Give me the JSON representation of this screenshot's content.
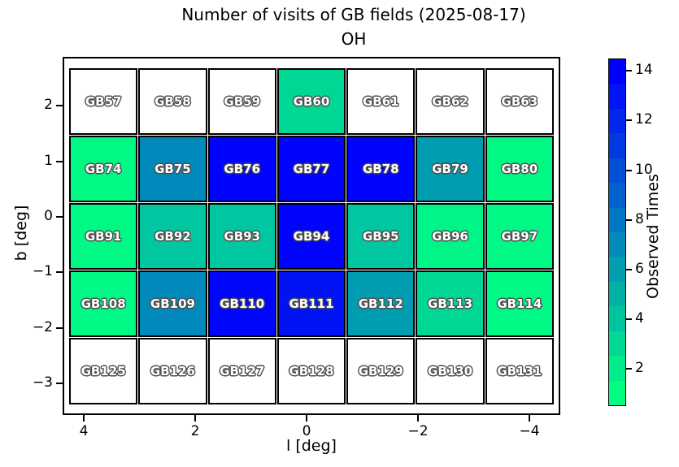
{
  "title": {
    "line1": "Number of visits of GB fields (2025-08-17)",
    "line2": "OH"
  },
  "axes": {
    "xlabel": "l [deg]",
    "ylabel": "b [deg]",
    "xticks": [
      {
        "label": "4",
        "value": 4
      },
      {
        "label": "2",
        "value": 2
      },
      {
        "label": "0",
        "value": 0
      },
      {
        "label": "−2",
        "value": -2
      },
      {
        "label": "−4",
        "value": -4
      }
    ],
    "yticks": [
      {
        "label": "2",
        "value": 2
      },
      {
        "label": "1",
        "value": 1
      },
      {
        "label": "0",
        "value": 0
      },
      {
        "label": "−1",
        "value": -1
      },
      {
        "label": "−2",
        "value": -2
      },
      {
        "label": "−3",
        "value": -3
      }
    ]
  },
  "colorbar": {
    "label": "Observed Times",
    "ticks": [
      {
        "label": "2",
        "value": 2
      },
      {
        "label": "4",
        "value": 4
      },
      {
        "label": "6",
        "value": 6
      },
      {
        "label": "8",
        "value": 8
      },
      {
        "label": "10",
        "value": 10
      },
      {
        "label": "12",
        "value": 12
      },
      {
        "label": "14",
        "value": 14
      }
    ],
    "range": [
      1,
      14
    ],
    "segments_bottom_to_top": [
      "#00FF80",
      "#00EB89",
      "#00D893",
      "#00C49D",
      "#00B1A6",
      "#009DB0",
      "#008ABA",
      "#0076C4",
      "#0062CD",
      "#004FD7",
      "#003BE1",
      "#0027EB",
      "#0014F5",
      "#0000FF"
    ]
  },
  "grid": {
    "cells": [
      {
        "label": "GB57",
        "value": 0,
        "color": "#ffffff"
      },
      {
        "label": "GB58",
        "value": 0,
        "color": "#ffffff"
      },
      {
        "label": "GB59",
        "value": 0,
        "color": "#ffffff"
      },
      {
        "label": "GB60",
        "value": 3,
        "color": "#00D794"
      },
      {
        "label": "GB61",
        "value": 0,
        "color": "#ffffff"
      },
      {
        "label": "GB62",
        "value": 0,
        "color": "#ffffff"
      },
      {
        "label": "GB63",
        "value": 0,
        "color": "#ffffff"
      },
      {
        "label": "GB74",
        "value": 1,
        "color": "#00F985"
      },
      {
        "label": "GB75",
        "value": 7,
        "color": "#0089BA"
      },
      {
        "label": "GB76",
        "value": 14,
        "color": "#0003FD"
      },
      {
        "label": "GB77",
        "value": 14,
        "color": "#0003FD"
      },
      {
        "label": "GB78",
        "value": 14,
        "color": "#0003FD"
      },
      {
        "label": "GB79",
        "value": 6,
        "color": "#009DB0"
      },
      {
        "label": "GB80",
        "value": 1,
        "color": "#00F985"
      },
      {
        "label": "GB91",
        "value": 1,
        "color": "#00F985"
      },
      {
        "label": "GB92",
        "value": 4,
        "color": "#00C7A0"
      },
      {
        "label": "GB93",
        "value": 4,
        "color": "#00C7A0"
      },
      {
        "label": "GB94",
        "value": 14,
        "color": "#0003FD"
      },
      {
        "label": "GB95",
        "value": 4,
        "color": "#00C7A0"
      },
      {
        "label": "GB96",
        "value": 1,
        "color": "#00F487"
      },
      {
        "label": "GB97",
        "value": 1,
        "color": "#00F985"
      },
      {
        "label": "GB108",
        "value": 1,
        "color": "#00F985"
      },
      {
        "label": "GB109",
        "value": 7,
        "color": "#0089BA"
      },
      {
        "label": "GB110",
        "value": 14,
        "color": "#0006FC"
      },
      {
        "label": "GB111",
        "value": 13,
        "color": "#0013F4"
      },
      {
        "label": "GB112",
        "value": 6,
        "color": "#009DB0"
      },
      {
        "label": "GB113",
        "value": 3,
        "color": "#00D794"
      },
      {
        "label": "GB114",
        "value": 1,
        "color": "#00F985"
      },
      {
        "label": "GB125",
        "value": 0,
        "color": "#ffffff"
      },
      {
        "label": "GB126",
        "value": 0,
        "color": "#ffffff"
      },
      {
        "label": "GB127",
        "value": 0,
        "color": "#ffffff"
      },
      {
        "label": "GB128",
        "value": 0,
        "color": "#ffffff"
      },
      {
        "label": "GB129",
        "value": 0,
        "color": "#ffffff"
      },
      {
        "label": "GB130",
        "value": 0,
        "color": "#ffffff"
      },
      {
        "label": "GB131",
        "value": 0,
        "color": "#ffffff"
      }
    ]
  },
  "chart_data": {
    "type": "heatmap",
    "title": "Number of visits of GB fields (2025-08-17)",
    "subtitle": "OH",
    "xlabel": "l [deg]",
    "ylabel": "b [deg]",
    "x_ticks": [
      4,
      2,
      0,
      -2,
      -4
    ],
    "x_axis_inverted": true,
    "y_ticks": [
      2,
      1,
      0,
      -1,
      -2,
      -3
    ],
    "colorbar_label": "Observed Times",
    "colorbar_ticks": [
      2,
      4,
      6,
      8,
      10,
      12,
      14
    ],
    "value_range": [
      1,
      14
    ],
    "zero_rendered_as": "white (not observed)",
    "row_b_centers": [
      2.0,
      0.8,
      -0.4,
      -1.7,
      -2.9
    ],
    "col_l_centers": [
      3.7,
      2.5,
      1.2,
      0.0,
      -1.2,
      -2.5,
      -3.7
    ],
    "rows": [
      {
        "fields": [
          "GB57",
          "GB58",
          "GB59",
          "GB60",
          "GB61",
          "GB62",
          "GB63"
        ],
        "values": [
          0,
          0,
          0,
          3,
          0,
          0,
          0
        ]
      },
      {
        "fields": [
          "GB74",
          "GB75",
          "GB76",
          "GB77",
          "GB78",
          "GB79",
          "GB80"
        ],
        "values": [
          1,
          7,
          14,
          14,
          14,
          6,
          1
        ]
      },
      {
        "fields": [
          "GB91",
          "GB92",
          "GB93",
          "GB94",
          "GB95",
          "GB96",
          "GB97"
        ],
        "values": [
          1,
          4,
          4,
          14,
          4,
          1,
          1
        ]
      },
      {
        "fields": [
          "GB108",
          "GB109",
          "GB110",
          "GB111",
          "GB112",
          "GB113",
          "GB114"
        ],
        "values": [
          1,
          7,
          14,
          13,
          6,
          3,
          1
        ]
      },
      {
        "fields": [
          "GB125",
          "GB126",
          "GB127",
          "GB128",
          "GB129",
          "GB130",
          "GB131"
        ],
        "values": [
          0,
          0,
          0,
          0,
          0,
          0,
          0
        ]
      }
    ],
    "colormap": "winter_r (discrete, 14 levels)"
  }
}
